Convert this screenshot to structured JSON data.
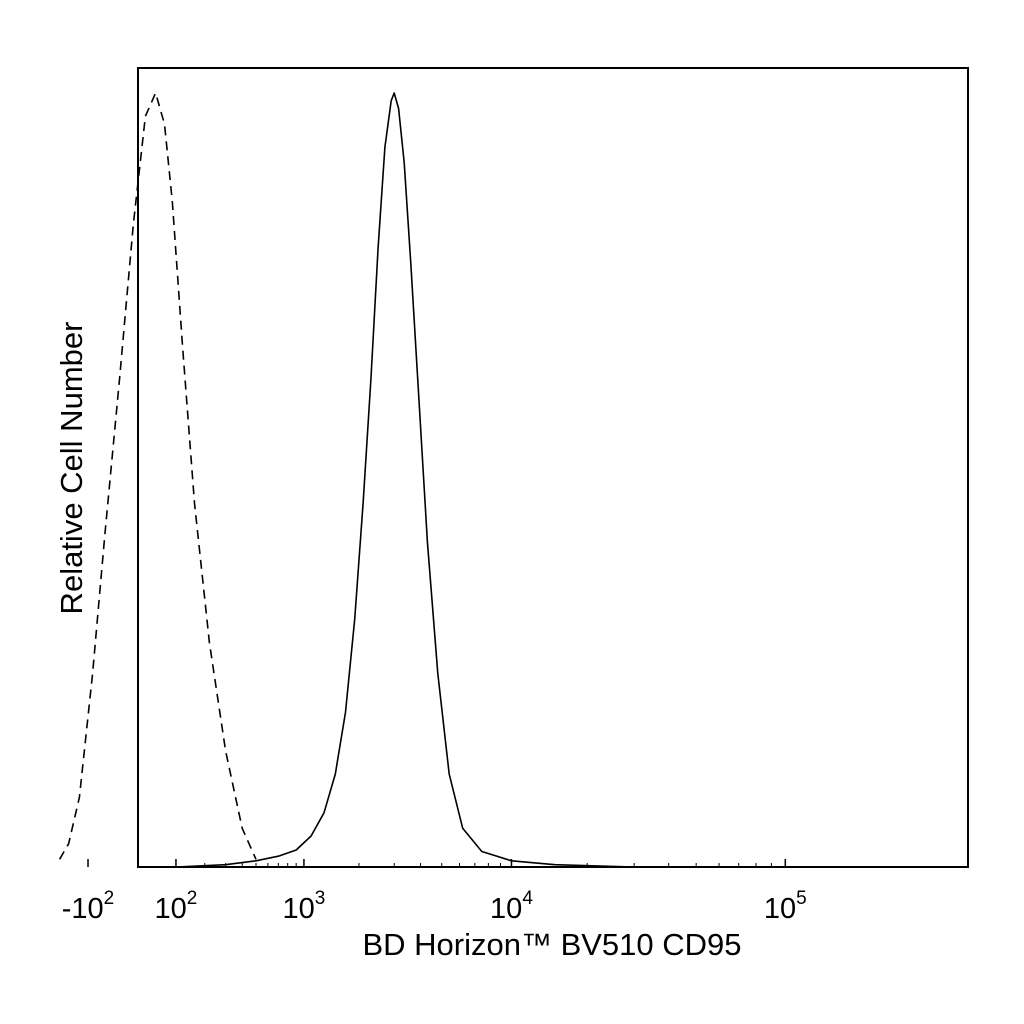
{
  "chart_data": {
    "type": "line",
    "title": "",
    "xlabel": "BD Horizon™ BV510 CD95",
    "ylabel": "Relative Cell Number",
    "x_scale": "biexponential",
    "tick_labels": [
      {
        "base": "-10",
        "exp": "2",
        "value": -100
      },
      {
        "base": "10",
        "exp": "2",
        "value": 100
      },
      {
        "base": "10",
        "exp": "3",
        "value": 1000
      },
      {
        "base": "10",
        "exp": "4",
        "value": 10000
      },
      {
        "base": "10",
        "exp": "5",
        "value": 100000
      }
    ],
    "y_range": [
      0,
      1
    ],
    "grid": false,
    "legend": "none",
    "series": [
      {
        "style": "dashed",
        "color": "#000000",
        "points": [
          [
            -400,
            0.01
          ],
          [
            -250,
            0.03
          ],
          [
            -150,
            0.09
          ],
          [
            -80,
            0.25
          ],
          [
            -40,
            0.43
          ],
          [
            -10,
            0.63
          ],
          [
            10,
            0.83
          ],
          [
            30,
            0.97
          ],
          [
            50,
            1.0
          ],
          [
            70,
            0.96
          ],
          [
            90,
            0.86
          ],
          [
            120,
            0.67
          ],
          [
            160,
            0.47
          ],
          [
            220,
            0.29
          ],
          [
            300,
            0.15
          ],
          [
            400,
            0.05
          ],
          [
            500,
            0.01
          ]
        ]
      },
      {
        "style": "solid",
        "color": "#000000",
        "points": [
          [
            100,
            0.0
          ],
          [
            300,
            0.003
          ],
          [
            500,
            0.008
          ],
          [
            700,
            0.014
          ],
          [
            900,
            0.022
          ],
          [
            1100,
            0.04
          ],
          [
            1300,
            0.07
          ],
          [
            1500,
            0.12
          ],
          [
            1700,
            0.2
          ],
          [
            1900,
            0.32
          ],
          [
            2100,
            0.47
          ],
          [
            2300,
            0.63
          ],
          [
            2500,
            0.8
          ],
          [
            2700,
            0.93
          ],
          [
            2900,
            0.99
          ],
          [
            3000,
            1.0
          ],
          [
            3150,
            0.98
          ],
          [
            3350,
            0.91
          ],
          [
            3600,
            0.78
          ],
          [
            3900,
            0.62
          ],
          [
            4300,
            0.42
          ],
          [
            4800,
            0.25
          ],
          [
            5400,
            0.12
          ],
          [
            6200,
            0.05
          ],
          [
            7500,
            0.02
          ],
          [
            10000,
            0.008
          ],
          [
            15000,
            0.003
          ],
          [
            30000,
            0.0
          ]
        ]
      }
    ]
  }
}
